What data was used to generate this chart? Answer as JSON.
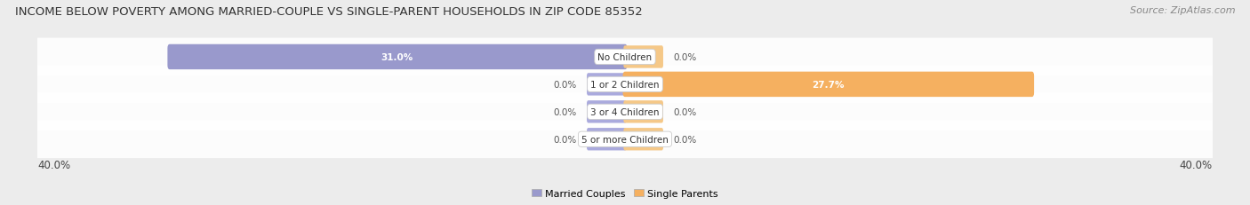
{
  "title": "INCOME BELOW POVERTY AMONG MARRIED-COUPLE VS SINGLE-PARENT HOUSEHOLDS IN ZIP CODE 85352",
  "source": "Source: ZipAtlas.com",
  "categories": [
    "No Children",
    "1 or 2 Children",
    "3 or 4 Children",
    "5 or more Children"
  ],
  "married_values": [
    31.0,
    0.0,
    0.0,
    0.0
  ],
  "single_values": [
    0.0,
    27.7,
    0.0,
    0.0
  ],
  "married_color": "#9999cc",
  "single_color": "#f5b060",
  "married_stub_color": "#aaaadd",
  "single_stub_color": "#f5c888",
  "axis_min": -40.0,
  "axis_max": 40.0,
  "axis_label_left": "40.0%",
  "axis_label_right": "40.0%",
  "background_color": "#ececec",
  "row_bg_color": "#e0e0e8",
  "title_fontsize": 9.5,
  "source_fontsize": 8,
  "value_fontsize": 7.5,
  "category_fontsize": 7.5,
  "legend_fontsize": 8,
  "axis_label_fontsize": 8.5,
  "stub_size": 2.5,
  "bar_height": 0.62
}
